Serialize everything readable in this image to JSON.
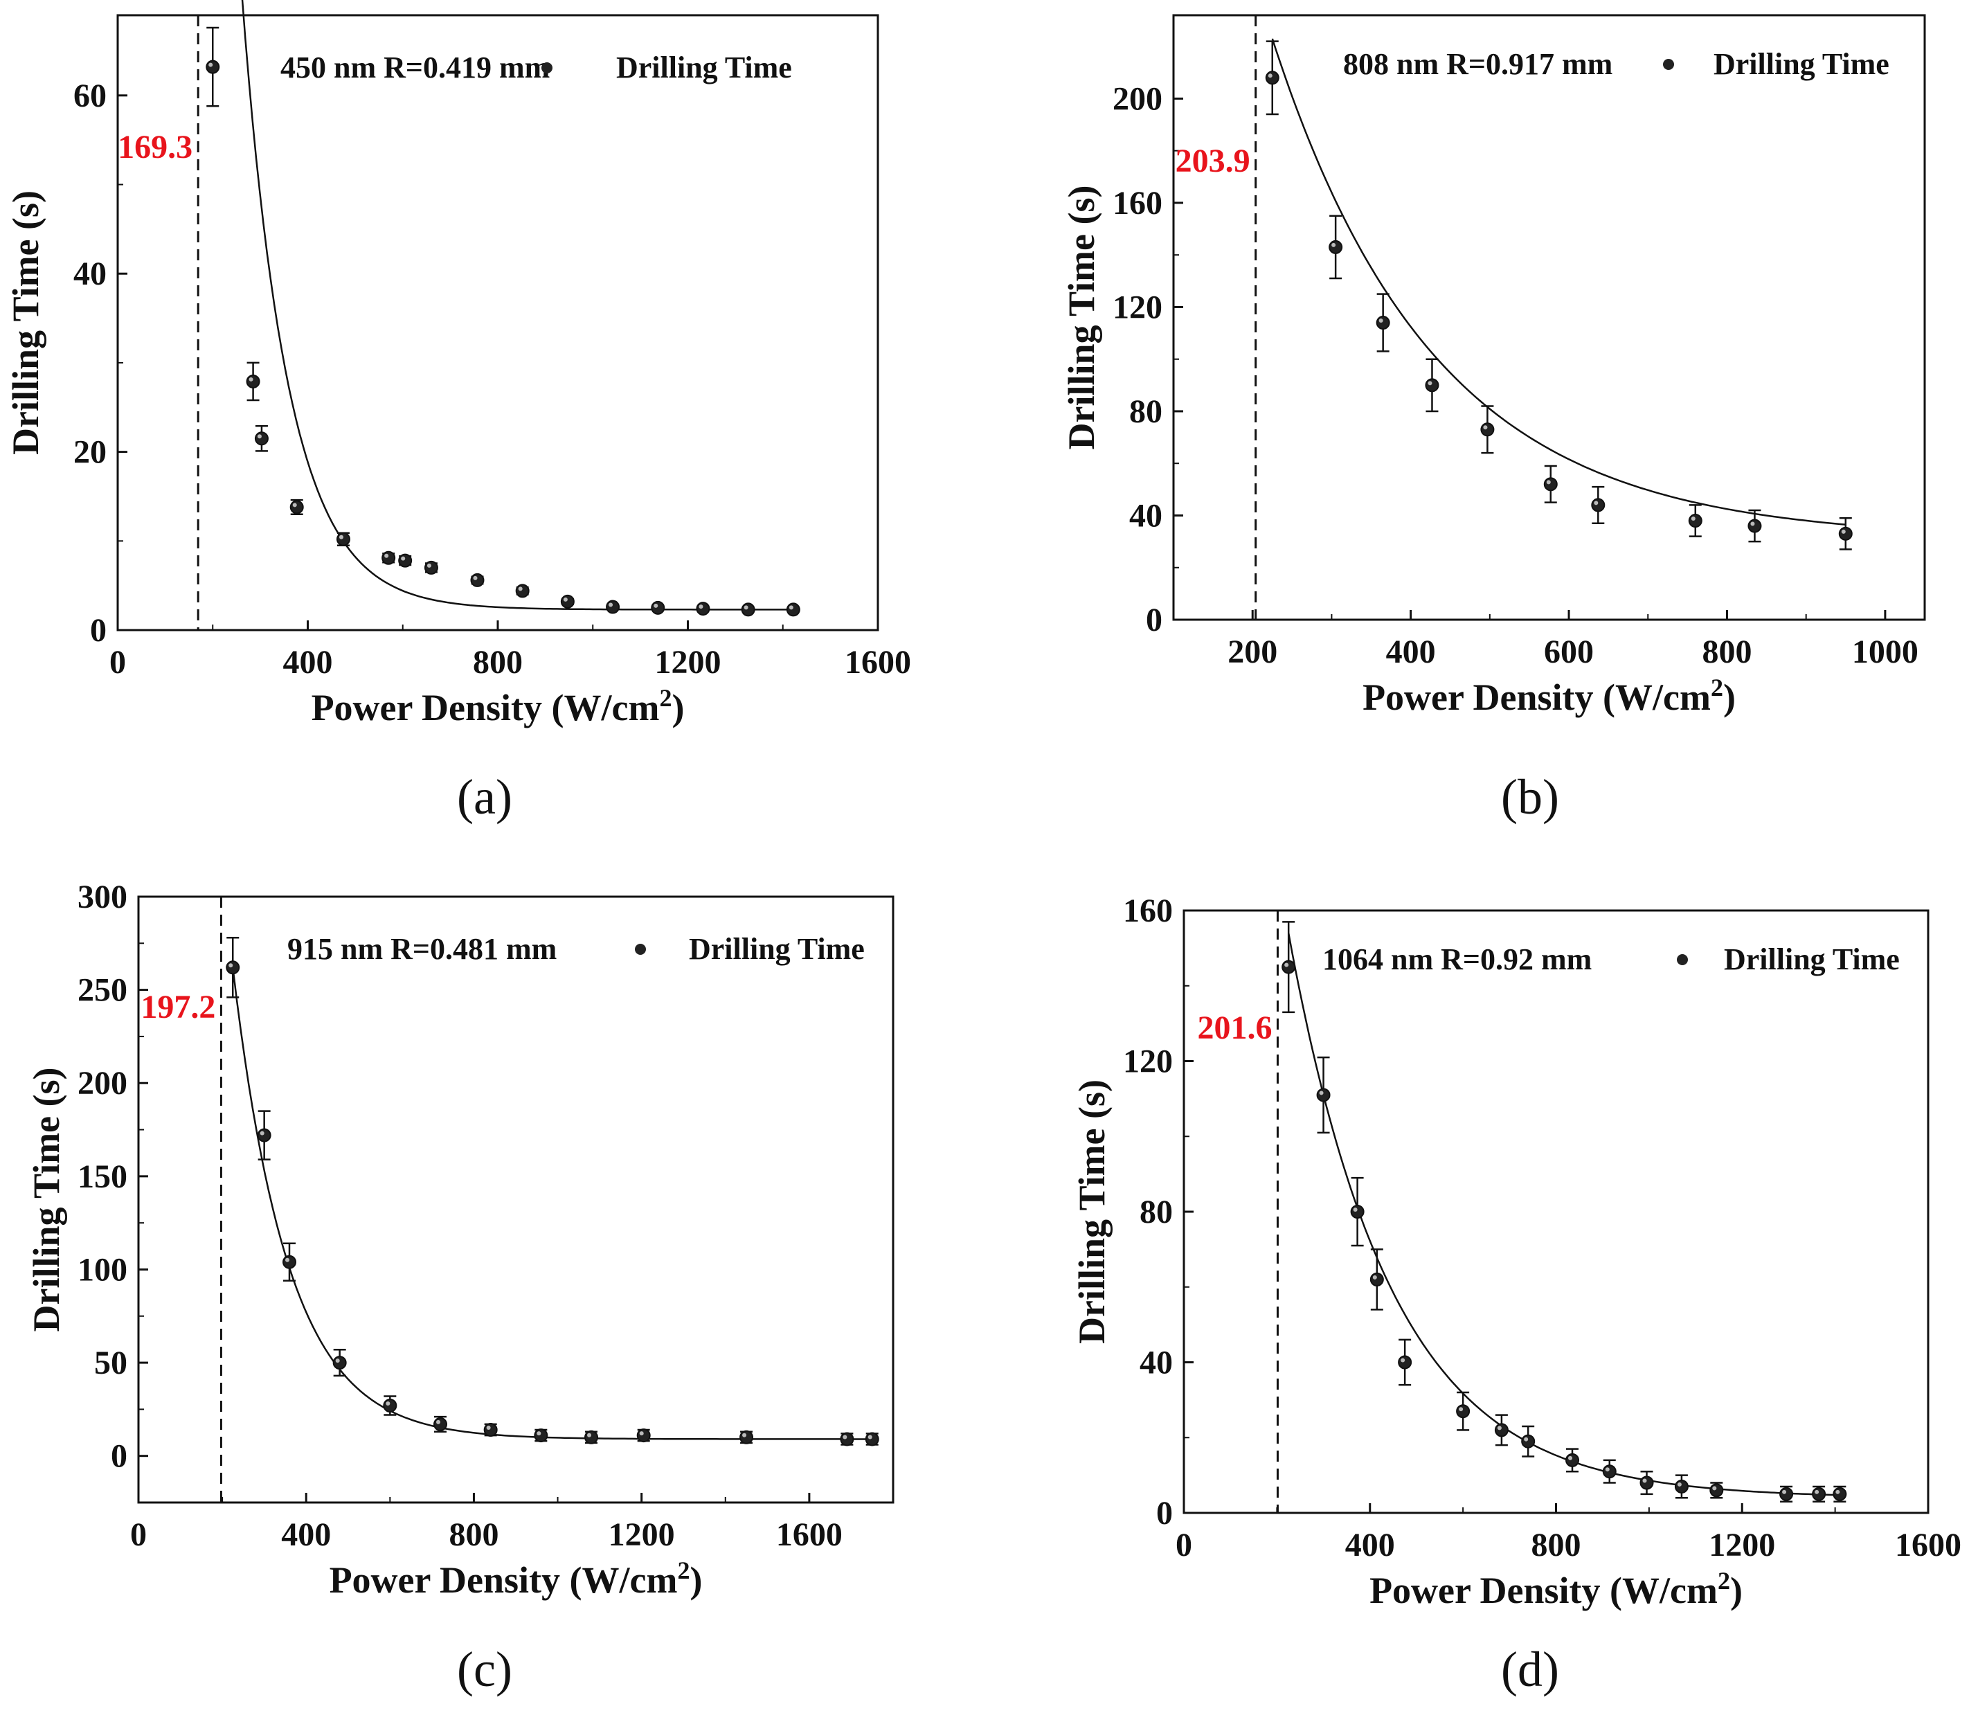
{
  "colors": {
    "axis": "#111111",
    "threshold": "#e8141c",
    "marker": "#222222"
  },
  "chart_data": [
    {
      "type": "scatter",
      "panel_label": "(a)",
      "title": "",
      "legend_label": "Drilling Time",
      "annotation": "450 nm  R=0.419 mm",
      "xlabel": "Power Density (W/cm",
      "xlabel_sup": "2",
      "xlabel_tail": ")",
      "ylabel": "Drilling Time (s)",
      "xlim": [
        0,
        1600
      ],
      "ylim": [
        0,
        69
      ],
      "xticks": [
        0,
        400,
        800,
        1200,
        1600
      ],
      "xtick_labels": [
        "0",
        "400",
        "800",
        "1200",
        "1600"
      ],
      "yticks": [
        0,
        20,
        40,
        60
      ],
      "ytick_labels": [
        "0",
        "20",
        "40",
        "60"
      ],
      "threshold": {
        "value": 169.3,
        "label": "169.3",
        "label_y": 53
      },
      "fit": {
        "x0": 169.3,
        "xmax": 1420,
        "a": 2.3,
        "b": 130,
        "c": 0.0103
      },
      "x": [
        200,
        285,
        303,
        377,
        475,
        570,
        605,
        660,
        757,
        852,
        947,
        1042,
        1137,
        1232,
        1327,
        1422
      ],
      "y": [
        63.2,
        27.9,
        21.5,
        13.8,
        10.2,
        8.1,
        7.8,
        7.0,
        5.6,
        4.4,
        3.2,
        2.6,
        2.5,
        2.4,
        2.3,
        2.3
      ],
      "yerr": [
        4.4,
        2.1,
        1.4,
        0.8,
        0.7,
        0.5,
        0.5,
        0.5,
        0.4,
        0.4,
        0.3,
        0.2,
        0.2,
        0.2,
        0.2,
        0.2
      ]
    },
    {
      "type": "scatter",
      "panel_label": "(b)",
      "title": "",
      "legend_label": "Drilling Time",
      "annotation": "808 nm  R=0.917 mm",
      "xlabel": "Power Density (W/cm",
      "xlabel_sup": "2",
      "xlabel_tail": ")",
      "ylabel": "Drilling Time (s)",
      "xlim": [
        100,
        1050
      ],
      "ylim": [
        0,
        232
      ],
      "xticks": [
        200,
        400,
        600,
        800,
        1000
      ],
      "xtick_labels": [
        "200",
        "400",
        "600",
        "800",
        "1000"
      ],
      "yticks": [
        0,
        40,
        80,
        120,
        160,
        200
      ],
      "ytick_labels": [
        "0",
        "40",
        "80",
        "120",
        "160",
        "200"
      ],
      "threshold": {
        "value": 203.9,
        "label": "203.9",
        "label_y": 172
      },
      "fit": {
        "x0": 203.9,
        "xmax": 950,
        "a": 31,
        "b": 192,
        "c": 0.0049
      },
      "x": [
        225,
        305,
        365,
        427,
        497,
        577,
        637,
        760,
        835,
        950
      ],
      "y": [
        208,
        143,
        114,
        90,
        73,
        52,
        44,
        38,
        36,
        33
      ],
      "yerr": [
        14,
        12,
        11,
        10,
        9,
        7,
        7,
        6,
        6,
        6
      ]
    },
    {
      "type": "scatter",
      "panel_label": "(c)",
      "title": "",
      "legend_label": "Drilling Time",
      "annotation": "915 nm  R=0.481 mm",
      "xlabel": "Power Density (W/cm",
      "xlabel_sup": "2",
      "xlabel_tail": ")",
      "ylabel": "Drilling Time (s)",
      "xlim": [
        0,
        1800
      ],
      "ylim": [
        -25,
        300
      ],
      "xticks": [
        0,
        400,
        800,
        1200,
        1600
      ],
      "xtick_labels": [
        "0",
        "400",
        "800",
        "1200",
        "1600"
      ],
      "yticks": [
        0,
        50,
        100,
        150,
        200,
        250,
        300
      ],
      "ytick_labels": [
        "0",
        "50",
        "100",
        "150",
        "200",
        "250",
        "300"
      ],
      "threshold": {
        "value": 197.2,
        "label": "197.2",
        "label_y": 235
      },
      "fit": {
        "x0": 197.2,
        "xmax": 1750,
        "a": 9,
        "b": 253,
        "c": 0.0075
      },
      "x": [
        225,
        300,
        360,
        480,
        600,
        720,
        840,
        960,
        1080,
        1205,
        1450,
        1690,
        1750
      ],
      "y": [
        262,
        172,
        104,
        50,
        27,
        17,
        14,
        11,
        10,
        11,
        10,
        9,
        9
      ],
      "yerr": [
        16,
        13,
        10,
        7,
        5,
        4,
        3,
        3,
        3,
        3,
        3,
        3,
        3
      ]
    },
    {
      "type": "scatter",
      "panel_label": "(d)",
      "title": "",
      "legend_label": "Drilling Time",
      "annotation": "1064 nm  R=0.92 mm",
      "xlabel": "Power Density (W/cm",
      "xlabel_sup": "2",
      "xlabel_tail": ")",
      "ylabel": "Drilling Time (s)",
      "xlim": [
        0,
        1600
      ],
      "ylim": [
        0,
        160
      ],
      "xticks": [
        0,
        400,
        800,
        1200,
        1600
      ],
      "xtick_labels": [
        "0",
        "400",
        "800",
        "1200",
        "1600"
      ],
      "yticks": [
        0,
        40,
        80,
        120,
        160
      ],
      "ytick_labels": [
        "0",
        "40",
        "80",
        "120",
        "160"
      ],
      "threshold": {
        "value": 201.6,
        "label": "201.6",
        "label_y": 126
      },
      "fit": {
        "x0": 201.6,
        "xmax": 1410,
        "a": 4,
        "b": 150,
        "c": 0.0045
      },
      "x": [
        225,
        300,
        373,
        415,
        475,
        600,
        683,
        740,
        835,
        915,
        995,
        1070,
        1145,
        1295,
        1365,
        1410
      ],
      "y": [
        145,
        111,
        80,
        62,
        40,
        27,
        22,
        19,
        14,
        11,
        8,
        7,
        6,
        5,
        5,
        5
      ],
      "yerr": [
        12,
        10,
        9,
        8,
        6,
        5,
        4,
        4,
        3,
        3,
        3,
        3,
        2,
        2,
        2,
        2
      ]
    }
  ]
}
